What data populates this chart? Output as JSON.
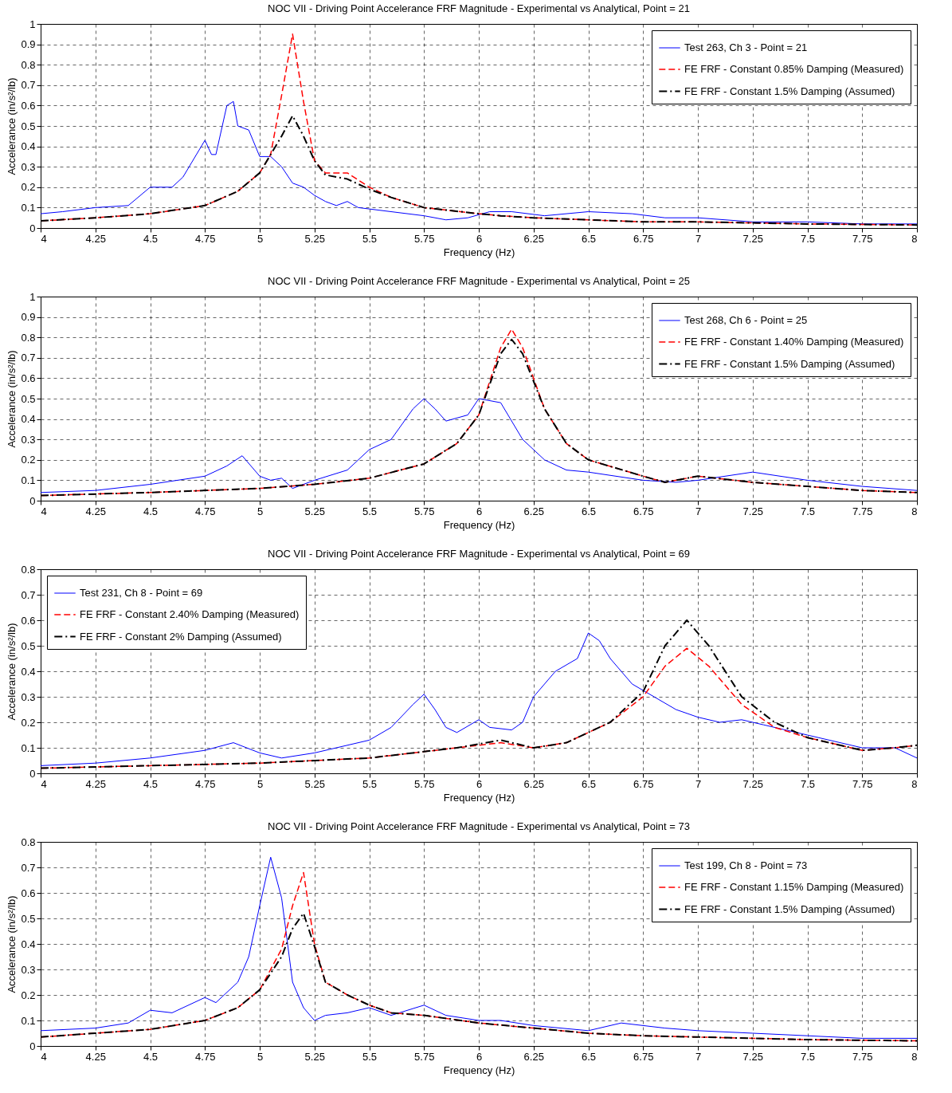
{
  "chart_data": [
    {
      "type": "line",
      "title": "NOC VII - Driving Point Accelerance FRF Magnitude - Experimental vs Analytical, Point = 21",
      "xlabel": "Frequency (Hz)",
      "ylabel": "Accelerance (in/s²/lb)",
      "xlim": [
        4,
        8
      ],
      "xticks": [
        4,
        4.25,
        4.5,
        4.75,
        5,
        5.25,
        5.5,
        5.75,
        6,
        6.25,
        6.5,
        6.75,
        7,
        7.25,
        7.5,
        7.75,
        8
      ],
      "ylim": [
        0,
        1
      ],
      "yticks": [
        0,
        0.1,
        0.2,
        0.3,
        0.4,
        0.5,
        0.6,
        0.7,
        0.8,
        0.9,
        1
      ],
      "grid": true,
      "legend": "top right",
      "series": [
        {
          "name": "Test 263, Ch 3 - Point = 21",
          "color": "#0000ff",
          "line_style": "solid",
          "x": [
            4,
            4.1,
            4.25,
            4.4,
            4.5,
            4.6,
            4.65,
            4.75,
            4.78,
            4.8,
            4.85,
            4.88,
            4.9,
            4.95,
            5,
            5.05,
            5.1,
            5.15,
            5.2,
            5.25,
            5.3,
            5.35,
            5.4,
            5.45,
            5.6,
            5.75,
            5.85,
            5.95,
            6.05,
            6.15,
            6.3,
            6.5,
            6.7,
            6.85,
            7,
            7.25,
            7.5,
            7.75,
            8
          ],
          "values": [
            0.07,
            0.08,
            0.1,
            0.11,
            0.2,
            0.2,
            0.25,
            0.43,
            0.36,
            0.36,
            0.6,
            0.62,
            0.5,
            0.48,
            0.35,
            0.35,
            0.3,
            0.22,
            0.2,
            0.16,
            0.13,
            0.11,
            0.13,
            0.1,
            0.08,
            0.06,
            0.04,
            0.05,
            0.08,
            0.08,
            0.06,
            0.08,
            0.07,
            0.05,
            0.05,
            0.03,
            0.03,
            0.02,
            0.02
          ]
        },
        {
          "name": "FE FRF - Constant 0.85% Damping (Measured)",
          "color": "#ff0000",
          "line_style": "dashed",
          "x": [
            4,
            4.25,
            4.5,
            4.75,
            4.9,
            5,
            5.05,
            5.1,
            5.15,
            5.2,
            5.25,
            5.3,
            5.4,
            5.5,
            5.6,
            5.75,
            6,
            6.1,
            6.25,
            6.5,
            6.75,
            7,
            7.5,
            8
          ],
          "values": [
            0.035,
            0.05,
            0.07,
            0.11,
            0.18,
            0.27,
            0.36,
            0.65,
            0.95,
            0.62,
            0.33,
            0.27,
            0.27,
            0.2,
            0.15,
            0.1,
            0.07,
            0.06,
            0.05,
            0.04,
            0.03,
            0.03,
            0.02,
            0.015
          ]
        },
        {
          "name": "FE FRF - Constant 1.5% Damping (Assumed)",
          "color": "#000000",
          "line_style": "dotted",
          "x": [
            4,
            4.25,
            4.5,
            4.75,
            4.9,
            5,
            5.05,
            5.1,
            5.15,
            5.2,
            5.25,
            5.3,
            5.4,
            5.5,
            5.6,
            5.75,
            6,
            6.1,
            6.25,
            6.5,
            6.75,
            7,
            7.5,
            8
          ],
          "values": [
            0.035,
            0.05,
            0.07,
            0.11,
            0.18,
            0.27,
            0.36,
            0.45,
            0.55,
            0.45,
            0.33,
            0.26,
            0.24,
            0.19,
            0.15,
            0.1,
            0.07,
            0.06,
            0.05,
            0.04,
            0.03,
            0.03,
            0.02,
            0.015
          ]
        }
      ]
    },
    {
      "type": "line",
      "title": "NOC VII - Driving Point Accelerance FRF Magnitude - Experimental vs Analytical, Point = 25",
      "xlabel": "Frequency (Hz)",
      "ylabel": "Accelerance (in/s²/lb)",
      "xlim": [
        4,
        8
      ],
      "xticks": [
        4,
        4.25,
        4.5,
        4.75,
        5,
        5.25,
        5.5,
        5.75,
        6,
        6.25,
        6.5,
        6.75,
        7,
        7.25,
        7.5,
        7.75,
        8
      ],
      "ylim": [
        0,
        1
      ],
      "yticks": [
        0,
        0.1,
        0.2,
        0.3,
        0.4,
        0.5,
        0.6,
        0.7,
        0.8,
        0.9,
        1
      ],
      "grid": true,
      "legend": "top right",
      "series": [
        {
          "name": "Test 268, Ch 6 - Point = 25",
          "color": "#0000ff",
          "line_style": "solid",
          "x": [
            4,
            4.25,
            4.5,
            4.75,
            4.85,
            4.92,
            5,
            5.05,
            5.1,
            5.15,
            5.25,
            5.4,
            5.5,
            5.6,
            5.7,
            5.75,
            5.8,
            5.85,
            5.95,
            6,
            6.1,
            6.2,
            6.3,
            6.4,
            6.5,
            6.75,
            6.9,
            7,
            7.25,
            7.5,
            7.75,
            8
          ],
          "values": [
            0.04,
            0.05,
            0.08,
            0.12,
            0.17,
            0.22,
            0.12,
            0.1,
            0.11,
            0.06,
            0.1,
            0.15,
            0.25,
            0.3,
            0.45,
            0.5,
            0.45,
            0.39,
            0.42,
            0.5,
            0.48,
            0.3,
            0.2,
            0.15,
            0.14,
            0.1,
            0.09,
            0.1,
            0.14,
            0.1,
            0.07,
            0.05
          ]
        },
        {
          "name": "FE FRF - Constant 1.40% Damping (Measured)",
          "color": "#ff0000",
          "line_style": "dashed",
          "x": [
            4,
            4.5,
            5,
            5.25,
            5.5,
            5.75,
            5.9,
            6,
            6.1,
            6.15,
            6.2,
            6.3,
            6.4,
            6.5,
            6.75,
            6.85,
            6.95,
            7,
            7.25,
            7.5,
            7.75,
            8
          ],
          "values": [
            0.025,
            0.04,
            0.06,
            0.08,
            0.11,
            0.18,
            0.28,
            0.42,
            0.75,
            0.84,
            0.75,
            0.45,
            0.28,
            0.2,
            0.12,
            0.09,
            0.11,
            0.12,
            0.09,
            0.07,
            0.05,
            0.04
          ]
        },
        {
          "name": "FE FRF - Constant 1.5% Damping (Assumed)",
          "color": "#000000",
          "line_style": "dotted",
          "x": [
            4,
            4.5,
            5,
            5.25,
            5.5,
            5.75,
            5.9,
            6,
            6.1,
            6.15,
            6.2,
            6.3,
            6.4,
            6.5,
            6.75,
            6.85,
            6.95,
            7,
            7.25,
            7.5,
            7.75,
            8
          ],
          "values": [
            0.025,
            0.04,
            0.06,
            0.08,
            0.11,
            0.18,
            0.28,
            0.42,
            0.72,
            0.79,
            0.72,
            0.45,
            0.28,
            0.2,
            0.12,
            0.09,
            0.11,
            0.12,
            0.09,
            0.07,
            0.05,
            0.04
          ]
        }
      ]
    },
    {
      "type": "line",
      "title": "NOC VII - Driving Point Accelerance FRF Magnitude - Experimental vs Analytical, Point = 69",
      "xlabel": "Frequency (Hz)",
      "ylabel": "Accelerance (in/s²/lb)",
      "xlim": [
        4,
        8
      ],
      "xticks": [
        4,
        4.25,
        4.5,
        4.75,
        5,
        5.25,
        5.5,
        5.75,
        6,
        6.25,
        6.5,
        6.75,
        7,
        7.25,
        7.5,
        7.75,
        8
      ],
      "ylim": [
        0,
        0.8
      ],
      "yticks": [
        0,
        0.1,
        0.2,
        0.3,
        0.4,
        0.5,
        0.6,
        0.7,
        0.8
      ],
      "grid": true,
      "legend": "top left",
      "series": [
        {
          "name": "Test 231, Ch 8 - Point = 69",
          "color": "#0000ff",
          "line_style": "solid",
          "x": [
            4,
            4.25,
            4.5,
            4.75,
            4.88,
            5,
            5.1,
            5.25,
            5.5,
            5.6,
            5.7,
            5.75,
            5.8,
            5.85,
            5.9,
            6,
            6.05,
            6.15,
            6.2,
            6.25,
            6.35,
            6.45,
            6.5,
            6.55,
            6.6,
            6.7,
            6.8,
            6.9,
            7,
            7.1,
            7.2,
            7.3,
            7.5,
            7.75,
            7.9,
            8
          ],
          "values": [
            0.03,
            0.04,
            0.06,
            0.09,
            0.12,
            0.08,
            0.06,
            0.08,
            0.13,
            0.18,
            0.27,
            0.31,
            0.25,
            0.18,
            0.16,
            0.21,
            0.18,
            0.17,
            0.2,
            0.3,
            0.4,
            0.45,
            0.55,
            0.52,
            0.45,
            0.35,
            0.3,
            0.25,
            0.22,
            0.2,
            0.21,
            0.19,
            0.15,
            0.1,
            0.1,
            0.06
          ]
        },
        {
          "name": "FE FRF - Constant 2.40% Damping (Measured)",
          "color": "#ff0000",
          "line_style": "dashed",
          "x": [
            4,
            4.5,
            5,
            5.5,
            5.9,
            6.1,
            6.25,
            6.4,
            6.6,
            6.75,
            6.85,
            6.95,
            7.05,
            7.2,
            7.35,
            7.5,
            7.75,
            7.9,
            8
          ],
          "values": [
            0.02,
            0.03,
            0.04,
            0.06,
            0.1,
            0.12,
            0.1,
            0.12,
            0.2,
            0.3,
            0.42,
            0.49,
            0.42,
            0.27,
            0.18,
            0.14,
            0.09,
            0.1,
            0.11
          ]
        },
        {
          "name": "FE FRF - Constant 2% Damping (Assumed)",
          "color": "#000000",
          "line_style": "dotted",
          "x": [
            4,
            4.5,
            5,
            5.5,
            5.9,
            6.1,
            6.25,
            6.4,
            6.6,
            6.75,
            6.85,
            6.95,
            7.05,
            7.2,
            7.35,
            7.5,
            7.75,
            7.9,
            8
          ],
          "values": [
            0.02,
            0.03,
            0.04,
            0.06,
            0.1,
            0.13,
            0.1,
            0.12,
            0.2,
            0.32,
            0.5,
            0.6,
            0.5,
            0.3,
            0.2,
            0.14,
            0.09,
            0.1,
            0.11
          ]
        }
      ]
    },
    {
      "type": "line",
      "title": "NOC VII - Driving Point Accelerance FRF Magnitude - Experimental vs Analytical, Point = 73",
      "xlabel": "Frequency (Hz)",
      "ylabel": "Accelerance (in/s²/lb)",
      "xlim": [
        4,
        8
      ],
      "xticks": [
        4,
        4.25,
        4.5,
        4.75,
        5,
        5.25,
        5.5,
        5.75,
        6,
        6.25,
        6.5,
        6.75,
        7,
        7.25,
        7.5,
        7.75,
        8
      ],
      "ylim": [
        0,
        0.8
      ],
      "yticks": [
        0,
        0.1,
        0.2,
        0.3,
        0.4,
        0.5,
        0.6,
        0.7,
        0.8
      ],
      "grid": true,
      "legend": "top right",
      "series": [
        {
          "name": "Test 199, Ch 8 - Point = 73",
          "color": "#0000ff",
          "line_style": "solid",
          "x": [
            4,
            4.25,
            4.4,
            4.5,
            4.6,
            4.75,
            4.8,
            4.9,
            4.95,
            5,
            5.05,
            5.1,
            5.15,
            5.2,
            5.25,
            5.3,
            5.4,
            5.5,
            5.6,
            5.75,
            5.85,
            6,
            6.1,
            6.25,
            6.5,
            6.65,
            6.85,
            7,
            7.25,
            7.5,
            7.75,
            8
          ],
          "values": [
            0.06,
            0.07,
            0.09,
            0.14,
            0.13,
            0.19,
            0.17,
            0.25,
            0.35,
            0.55,
            0.74,
            0.58,
            0.25,
            0.15,
            0.1,
            0.12,
            0.13,
            0.15,
            0.12,
            0.16,
            0.12,
            0.1,
            0.1,
            0.08,
            0.06,
            0.09,
            0.07,
            0.06,
            0.05,
            0.04,
            0.03,
            0.03
          ]
        },
        {
          "name": "FE FRF - Constant 1.15% Damping (Measured)",
          "color": "#ff0000",
          "line_style": "dashed",
          "x": [
            4,
            4.25,
            4.5,
            4.75,
            4.9,
            5,
            5.1,
            5.15,
            5.2,
            5.25,
            5.3,
            5.4,
            5.5,
            5.6,
            5.75,
            6,
            6.25,
            6.5,
            6.75,
            7,
            7.5,
            8
          ],
          "values": [
            0.035,
            0.05,
            0.065,
            0.1,
            0.15,
            0.22,
            0.38,
            0.55,
            0.68,
            0.4,
            0.25,
            0.2,
            0.16,
            0.13,
            0.12,
            0.09,
            0.07,
            0.05,
            0.04,
            0.035,
            0.025,
            0.02
          ]
        },
        {
          "name": "FE FRF - Constant 1.5% Damping (Assumed)",
          "color": "#000000",
          "line_style": "dotted",
          "x": [
            4,
            4.25,
            4.5,
            4.75,
            4.9,
            5,
            5.1,
            5.15,
            5.2,
            5.25,
            5.3,
            5.4,
            5.5,
            5.6,
            5.75,
            6,
            6.25,
            6.5,
            6.75,
            7,
            7.5,
            8
          ],
          "values": [
            0.035,
            0.05,
            0.065,
            0.1,
            0.15,
            0.22,
            0.35,
            0.46,
            0.52,
            0.39,
            0.25,
            0.2,
            0.16,
            0.13,
            0.12,
            0.09,
            0.07,
            0.05,
            0.04,
            0.035,
            0.025,
            0.02
          ]
        }
      ]
    }
  ]
}
